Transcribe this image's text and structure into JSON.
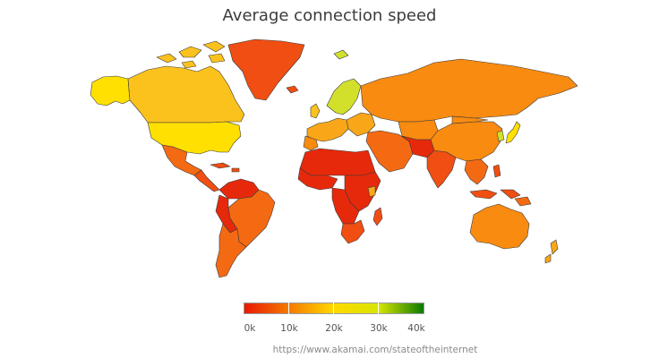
{
  "title": "Average connection speed",
  "legend": {
    "ticks": [
      "0k",
      "10k",
      "20k",
      "30k",
      "40k"
    ],
    "colors": [
      "#e81a05",
      "#f57a00",
      "#ffd900",
      "#d7e600",
      "#0c7a00"
    ]
  },
  "credit": "https://www.akamai.com/stateoftheinternet",
  "colors": {
    "deep_red": "#e7290b",
    "red_orange": "#f04e12",
    "orange_red": "#f46a13",
    "orange": "#f98b10",
    "light_orange": "#f9a718",
    "yellow_orange": "#fbc21d",
    "yellow": "#ffe000",
    "yellow_green": "#d2e02c",
    "border": "#3a3a3a"
  }
}
